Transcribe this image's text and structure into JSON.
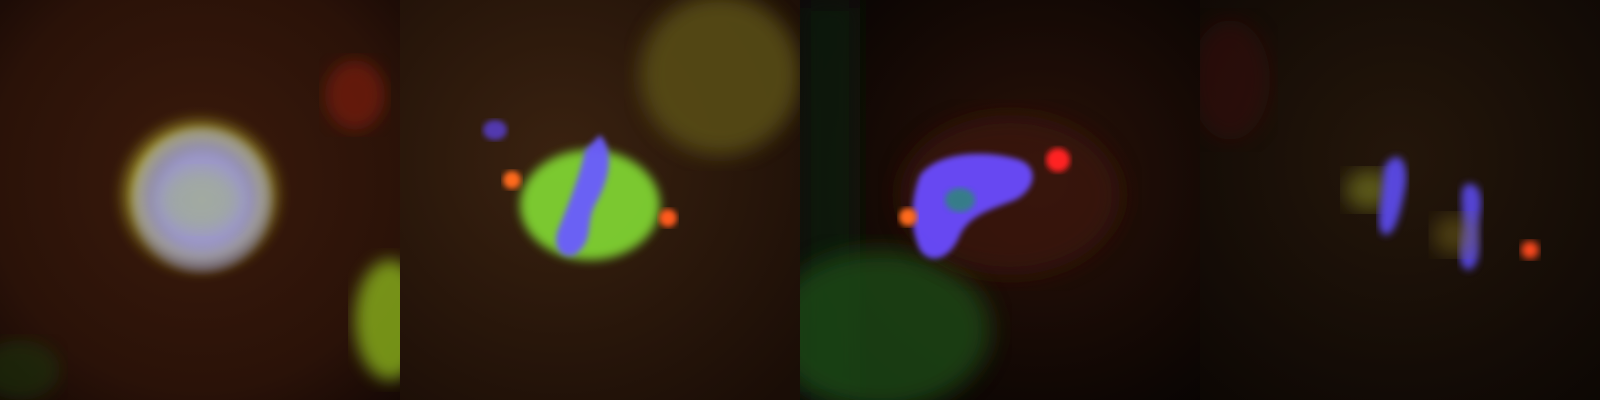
{
  "figure": {
    "panels": [
      {
        "stage": "interphase"
      },
      {
        "stage": "metaphase"
      },
      {
        "stage": "anaphase-early"
      },
      {
        "stage": "anaphase-late"
      }
    ],
    "channels": {
      "dna": "#6a5cff",
      "green_marker": "#8fd12a",
      "red_spot": "#ff3a2a",
      "background": "#2a1408"
    }
  }
}
